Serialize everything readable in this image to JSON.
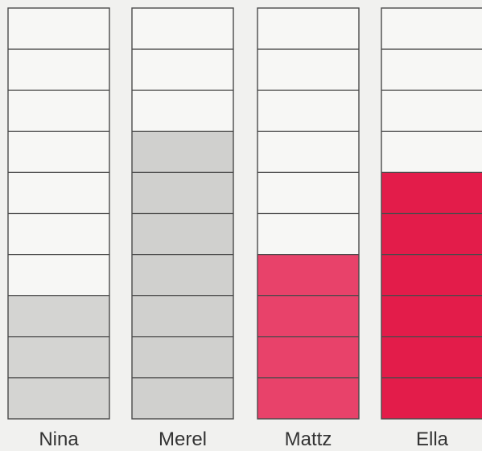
{
  "chart_data": {
    "type": "bar",
    "categories": [
      "Nina",
      "Merel",
      "Mattz",
      "Ella"
    ],
    "values": [
      3,
      7,
      4,
      6
    ],
    "ylim": [
      0,
      10
    ],
    "grid": true,
    "colors": {
      "empty_cell": "#f7f7f5",
      "grid_line": "#4a4a4a",
      "Nina": "#d4d4d2",
      "Merel": "#d0d0ce",
      "Mattz": "#e8426a",
      "Ella": "#e31c4a",
      "label": "#333333"
    }
  }
}
